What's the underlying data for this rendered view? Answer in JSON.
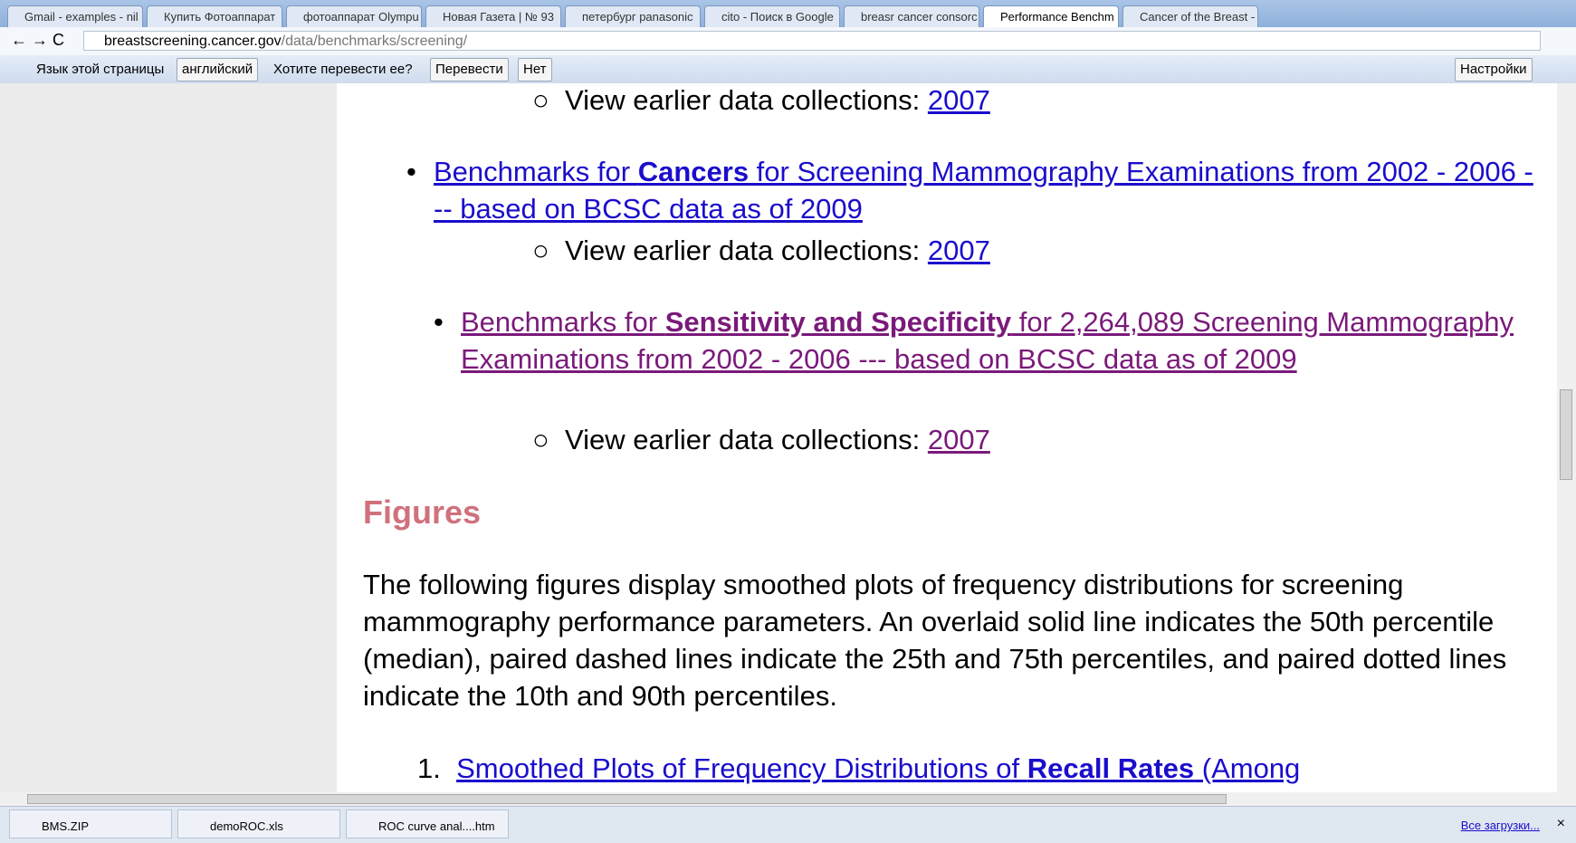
{
  "tabs": [
    "Gmail - examples - nil",
    "Купить Фотоаппарат",
    "фотоаппарат Olympu",
    "Новая Газета | № 93",
    "петербург panasonic",
    "cito - Поиск в Google",
    "breasr cancer consorc",
    "Performance Benchm",
    "Cancer of the Breast -"
  ],
  "address": {
    "host": "breastscreening.cancer.gov",
    "path": "/data/benchmarks/screening/"
  },
  "translate_bar": {
    "label": "Язык этой страницы",
    "language": "английский",
    "question": "Хотите перевести ее?",
    "translate": "Перевести",
    "no": "Нет",
    "settings": "Настройки"
  },
  "content": {
    "sub_label": "View earlier data collections: ",
    "sub_link": "2007",
    "links": [
      {
        "before": "Benchmarks for ",
        "bold": "Cancers",
        "after": " for Screening Mammography Examinations from 2002 - 2006 --- based on BCSC data as of 2009"
      },
      {
        "before": "Benchmarks for ",
        "bold": "Sensitivity and Specificity",
        "after": " for 2,264,089 Screening Mammography Examinations from 2002 - 2006 --- based on BCSC data as of 2009"
      }
    ],
    "heading": "Figures",
    "paragraph": "The following figures display smoothed plots of frequency distributions for screening mammography performance parameters. An overlaid solid line indicates the 50th percentile (median), paired dashed lines indicate the 25th and 75th percentiles, and paired dotted lines indicate the 10th and 90th percentiles.",
    "list_item": {
      "number": "1.",
      "before": "Smoothed Plots of Frequency Distributions of ",
      "bold": "Recall Rates",
      "after": " (Among"
    }
  },
  "downloads": {
    "files": [
      "BMS.ZIP",
      "demoROC.xls",
      "ROC curve anal....htm"
    ],
    "all": "Все загрузки..."
  }
}
